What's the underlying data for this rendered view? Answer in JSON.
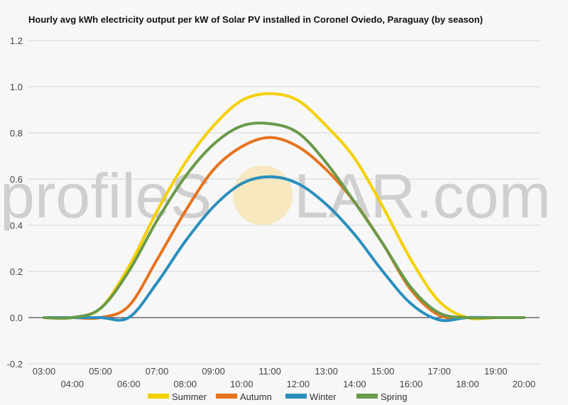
{
  "chart_data": {
    "type": "line",
    "title": "Hourly avg kWh electricity output per kW of Solar PV installed in Coronel Oviedo, Paraguay (by season)",
    "xlabel": "",
    "ylabel": "",
    "ylim": [
      -0.2,
      1.2
    ],
    "yticks": [
      "-0.2",
      "0.0",
      "0.2",
      "0.4",
      "0.6",
      "0.8",
      "1.0",
      "1.2"
    ],
    "xticks": [
      "03:00",
      "04:00",
      "05:00",
      "06:00",
      "07:00",
      "08:00",
      "09:00",
      "10:00",
      "11:00",
      "12:00",
      "13:00",
      "14:00",
      "15:00",
      "16:00",
      "17:00",
      "18:00",
      "19:00",
      "20:00"
    ],
    "categories": [
      "03:00",
      "04:00",
      "05:00",
      "06:00",
      "07:00",
      "08:00",
      "09:00",
      "10:00",
      "11:00",
      "12:00",
      "13:00",
      "14:00",
      "15:00",
      "16:00",
      "17:00",
      "18:00",
      "19:00",
      "20:00"
    ],
    "grid": true,
    "legend_position": "bottom",
    "series": [
      {
        "name": "Summer",
        "color": "#f5d000",
        "values": [
          0,
          0,
          0.04,
          0.22,
          0.46,
          0.67,
          0.83,
          0.94,
          0.97,
          0.94,
          0.83,
          0.69,
          0.48,
          0.25,
          0.07,
          0,
          0,
          0
        ]
      },
      {
        "name": "Autumn",
        "color": "#e6731e",
        "values": [
          0,
          0,
          0,
          0.05,
          0.25,
          0.46,
          0.64,
          0.74,
          0.78,
          0.74,
          0.64,
          0.5,
          0.32,
          0.12,
          0.01,
          0,
          0,
          0
        ]
      },
      {
        "name": "Winter",
        "color": "#2a8fbd",
        "values": [
          0,
          0,
          0,
          0,
          0.15,
          0.33,
          0.48,
          0.58,
          0.61,
          0.58,
          0.49,
          0.36,
          0.2,
          0.06,
          -0.01,
          0,
          0,
          0
        ]
      },
      {
        "name": "Spring",
        "color": "#6a9a4a",
        "values": [
          0,
          0,
          0.04,
          0.2,
          0.42,
          0.61,
          0.75,
          0.83,
          0.84,
          0.8,
          0.67,
          0.5,
          0.32,
          0.13,
          0.02,
          0,
          0,
          0
        ]
      }
    ]
  },
  "watermark": {
    "left": "profileS",
    "right": "LAR.com"
  }
}
